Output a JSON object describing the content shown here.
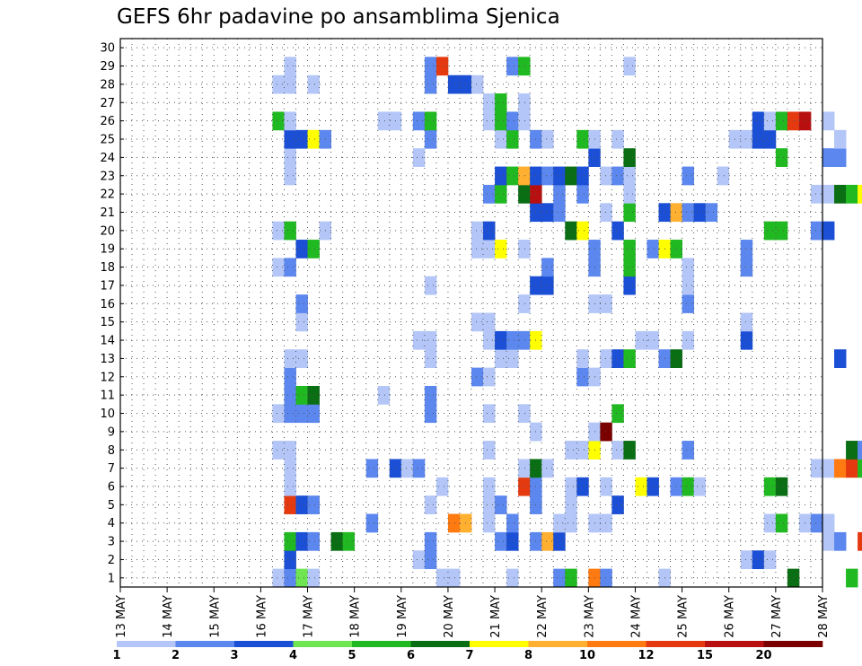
{
  "chart_data": {
    "type": "heatmap",
    "title": "GEFS 6hr padavine po ansamblima Sjenica",
    "y_categories": [
      "1",
      "2",
      "3",
      "4",
      "5",
      "6",
      "7",
      "8",
      "9",
      "10",
      "11",
      "12",
      "13",
      "14",
      "15",
      "16",
      "17",
      "18",
      "19",
      "20",
      "21",
      "22",
      "23",
      "24",
      "25",
      "26",
      "27",
      "28",
      "29",
      "30"
    ],
    "x_ticks": [
      "13 MAY",
      "14 MAY",
      "15 MAY",
      "16 MAY",
      "17 MAY",
      "18 MAY",
      "19 MAY",
      "20 MAY",
      "21 MAY",
      "22 MAY",
      "23 MAY",
      "24 MAY",
      "25 MAY",
      "26 MAY",
      "27 MAY",
      "28 MAY"
    ],
    "x_steps_per_day": 4,
    "grid": "dotted",
    "colorbar": {
      "levels": [
        "1",
        "2",
        "3",
        "4",
        "5",
        "6",
        "7",
        "8",
        "10",
        "12",
        "15",
        "20"
      ],
      "colors": [
        "#b3c6f7",
        "#5b87ef",
        "#1a4fd6",
        "#6fe651",
        "#21b921",
        "#0a6e14",
        "#ffff00",
        "#ffb030",
        "#ff7a10",
        "#e53a10",
        "#b81010",
        "#7a0000"
      ]
    },
    "cells": [
      [
        13,
        1,
        1
      ],
      [
        14,
        1,
        2
      ],
      [
        15,
        1,
        4
      ],
      [
        16,
        1,
        1
      ],
      [
        27,
        1,
        1
      ],
      [
        28,
        1,
        1
      ],
      [
        33,
        1,
        1
      ],
      [
        37,
        1,
        2
      ],
      [
        38,
        1,
        5
      ],
      [
        40,
        1,
        9
      ],
      [
        41,
        1,
        2
      ],
      [
        46,
        1,
        1
      ],
      [
        57,
        1,
        6
      ],
      [
        62,
        1,
        5
      ],
      [
        67,
        1,
        1
      ],
      [
        68,
        1,
        2
      ],
      [
        14,
        2,
        3
      ],
      [
        25,
        2,
        1
      ],
      [
        26,
        2,
        2
      ],
      [
        53,
        2,
        1
      ],
      [
        54,
        2,
        3
      ],
      [
        55,
        2,
        1
      ],
      [
        14,
        3,
        5
      ],
      [
        15,
        3,
        3
      ],
      [
        16,
        3,
        2
      ],
      [
        18,
        3,
        6
      ],
      [
        19,
        3,
        5
      ],
      [
        26,
        3,
        2
      ],
      [
        32,
        3,
        2
      ],
      [
        33,
        3,
        3
      ],
      [
        35,
        3,
        2
      ],
      [
        36,
        3,
        8
      ],
      [
        37,
        3,
        3
      ],
      [
        60,
        3,
        1
      ],
      [
        61,
        3,
        2
      ],
      [
        63,
        3,
        10
      ],
      [
        64,
        3,
        6
      ],
      [
        65,
        3,
        1
      ],
      [
        66,
        3,
        5
      ],
      [
        67,
        3,
        6
      ],
      [
        21,
        4,
        2
      ],
      [
        28,
        4,
        9
      ],
      [
        29,
        4,
        8
      ],
      [
        31,
        4,
        1
      ],
      [
        33,
        4,
        2
      ],
      [
        37,
        4,
        1
      ],
      [
        38,
        4,
        1
      ],
      [
        40,
        4,
        1
      ],
      [
        41,
        4,
        1
      ],
      [
        55,
        4,
        1
      ],
      [
        56,
        4,
        5
      ],
      [
        58,
        4,
        1
      ],
      [
        59,
        4,
        2
      ],
      [
        60,
        4,
        1
      ],
      [
        65,
        4,
        3
      ],
      [
        70,
        4,
        2
      ],
      [
        71,
        4,
        2
      ],
      [
        14,
        5,
        10
      ],
      [
        15,
        5,
        3
      ],
      [
        16,
        5,
        2
      ],
      [
        26,
        5,
        1
      ],
      [
        31,
        5,
        1
      ],
      [
        32,
        5,
        2
      ],
      [
        35,
        5,
        2
      ],
      [
        38,
        5,
        1
      ],
      [
        42,
        5,
        3
      ],
      [
        14,
        6,
        1
      ],
      [
        27,
        6,
        1
      ],
      [
        31,
        6,
        1
      ],
      [
        34,
        6,
        10
      ],
      [
        35,
        6,
        2
      ],
      [
        38,
        6,
        1
      ],
      [
        39,
        6,
        3
      ],
      [
        41,
        6,
        1
      ],
      [
        44,
        6,
        7
      ],
      [
        45,
        6,
        3
      ],
      [
        47,
        6,
        2
      ],
      [
        48,
        6,
        5
      ],
      [
        49,
        6,
        1
      ],
      [
        55,
        6,
        5
      ],
      [
        56,
        6,
        6
      ],
      [
        14,
        7,
        1
      ],
      [
        21,
        7,
        2
      ],
      [
        23,
        7,
        3
      ],
      [
        24,
        7,
        1
      ],
      [
        25,
        7,
        2
      ],
      [
        34,
        7,
        1
      ],
      [
        35,
        7,
        6
      ],
      [
        36,
        7,
        1
      ],
      [
        59,
        7,
        1
      ],
      [
        60,
        7,
        1
      ],
      [
        61,
        7,
        9
      ],
      [
        62,
        7,
        10
      ],
      [
        63,
        7,
        5
      ],
      [
        13,
        8,
        1
      ],
      [
        14,
        8,
        1
      ],
      [
        31,
        8,
        1
      ],
      [
        38,
        8,
        1
      ],
      [
        39,
        8,
        1
      ],
      [
        40,
        8,
        7
      ],
      [
        42,
        8,
        1
      ],
      [
        43,
        8,
        6
      ],
      [
        48,
        8,
        2
      ],
      [
        62,
        8,
        6
      ],
      [
        63,
        8,
        2
      ],
      [
        35,
        9,
        1
      ],
      [
        40,
        9,
        1
      ],
      [
        41,
        9,
        12
      ],
      [
        13,
        10,
        1
      ],
      [
        14,
        10,
        2
      ],
      [
        15,
        10,
        2
      ],
      [
        16,
        10,
        2
      ],
      [
        26,
        10,
        2
      ],
      [
        31,
        10,
        1
      ],
      [
        34,
        10,
        1
      ],
      [
        42,
        10,
        5
      ],
      [
        70,
        10,
        1
      ],
      [
        71,
        10,
        3
      ],
      [
        14,
        11,
        2
      ],
      [
        15,
        11,
        5
      ],
      [
        16,
        11,
        6
      ],
      [
        22,
        11,
        1
      ],
      [
        26,
        11,
        2
      ],
      [
        66,
        11,
        2
      ],
      [
        70,
        11,
        2
      ],
      [
        14,
        12,
        2
      ],
      [
        30,
        12,
        2
      ],
      [
        31,
        12,
        1
      ],
      [
        39,
        12,
        2
      ],
      [
        40,
        12,
        1
      ],
      [
        72,
        12,
        7
      ],
      [
        14,
        13,
        1
      ],
      [
        15,
        13,
        1
      ],
      [
        26,
        13,
        1
      ],
      [
        32,
        13,
        1
      ],
      [
        33,
        13,
        1
      ],
      [
        39,
        13,
        1
      ],
      [
        41,
        13,
        1
      ],
      [
        42,
        13,
        3
      ],
      [
        43,
        13,
        5
      ],
      [
        46,
        13,
        2
      ],
      [
        47,
        13,
        6
      ],
      [
        61,
        13,
        3
      ],
      [
        70,
        13,
        3
      ],
      [
        71,
        13,
        6
      ],
      [
        25,
        14,
        1
      ],
      [
        26,
        14,
        1
      ],
      [
        31,
        14,
        1
      ],
      [
        32,
        14,
        3
      ],
      [
        33,
        14,
        2
      ],
      [
        34,
        14,
        2
      ],
      [
        35,
        14,
        7
      ],
      [
        44,
        14,
        1
      ],
      [
        45,
        14,
        1
      ],
      [
        48,
        14,
        1
      ],
      [
        53,
        14,
        3
      ],
      [
        65,
        14,
        1
      ],
      [
        66,
        14,
        1
      ],
      [
        67,
        14,
        5
      ],
      [
        68,
        14,
        8
      ],
      [
        69,
        14,
        11
      ],
      [
        70,
        14,
        2
      ],
      [
        15,
        15,
        1
      ],
      [
        30,
        15,
        1
      ],
      [
        31,
        15,
        1
      ],
      [
        53,
        15,
        1
      ],
      [
        15,
        16,
        2
      ],
      [
        34,
        16,
        1
      ],
      [
        40,
        16,
        1
      ],
      [
        41,
        16,
        1
      ],
      [
        48,
        16,
        2
      ],
      [
        26,
        17,
        1
      ],
      [
        35,
        17,
        3
      ],
      [
        36,
        17,
        3
      ],
      [
        43,
        17,
        3
      ],
      [
        48,
        17,
        1
      ],
      [
        67,
        17,
        1
      ],
      [
        68,
        17,
        1
      ],
      [
        70,
        17,
        2
      ],
      [
        71,
        17,
        2
      ],
      [
        13,
        18,
        1
      ],
      [
        14,
        18,
        2
      ],
      [
        36,
        18,
        2
      ],
      [
        40,
        18,
        2
      ],
      [
        43,
        18,
        5
      ],
      [
        48,
        18,
        1
      ],
      [
        53,
        18,
        2
      ],
      [
        68,
        18,
        8
      ],
      [
        71,
        18,
        1
      ],
      [
        15,
        19,
        3
      ],
      [
        16,
        19,
        5
      ],
      [
        30,
        19,
        1
      ],
      [
        31,
        19,
        1
      ],
      [
        32,
        19,
        7
      ],
      [
        34,
        19,
        1
      ],
      [
        40,
        19,
        2
      ],
      [
        43,
        19,
        5
      ],
      [
        45,
        19,
        2
      ],
      [
        46,
        19,
        7
      ],
      [
        47,
        19,
        5
      ],
      [
        53,
        19,
        2
      ],
      [
        13,
        20,
        1
      ],
      [
        14,
        20,
        5
      ],
      [
        17,
        20,
        1
      ],
      [
        30,
        20,
        1
      ],
      [
        31,
        20,
        3
      ],
      [
        38,
        20,
        6
      ],
      [
        39,
        20,
        7
      ],
      [
        42,
        20,
        3
      ],
      [
        55,
        20,
        5
      ],
      [
        56,
        20,
        5
      ],
      [
        59,
        20,
        2
      ],
      [
        60,
        20,
        3
      ],
      [
        66,
        20,
        1
      ],
      [
        35,
        21,
        3
      ],
      [
        36,
        21,
        3
      ],
      [
        37,
        21,
        2
      ],
      [
        41,
        21,
        1
      ],
      [
        43,
        21,
        5
      ],
      [
        46,
        21,
        3
      ],
      [
        47,
        21,
        8
      ],
      [
        48,
        21,
        2
      ],
      [
        49,
        21,
        3
      ],
      [
        50,
        21,
        2
      ],
      [
        31,
        22,
        2
      ],
      [
        32,
        22,
        5
      ],
      [
        34,
        22,
        6
      ],
      [
        35,
        22,
        11
      ],
      [
        37,
        22,
        2
      ],
      [
        39,
        22,
        2
      ],
      [
        43,
        22,
        1
      ],
      [
        59,
        22,
        1
      ],
      [
        60,
        22,
        1
      ],
      [
        61,
        22,
        6
      ],
      [
        62,
        22,
        5
      ],
      [
        63,
        22,
        7
      ],
      [
        64,
        22,
        1
      ],
      [
        14,
        23,
        1
      ],
      [
        32,
        23,
        3
      ],
      [
        33,
        23,
        5
      ],
      [
        34,
        23,
        8
      ],
      [
        35,
        23,
        3
      ],
      [
        36,
        23,
        2
      ],
      [
        37,
        23,
        3
      ],
      [
        38,
        23,
        6
      ],
      [
        39,
        23,
        3
      ],
      [
        41,
        23,
        1
      ],
      [
        42,
        23,
        2
      ],
      [
        43,
        23,
        1
      ],
      [
        48,
        23,
        2
      ],
      [
        51,
        23,
        1
      ],
      [
        14,
        24,
        1
      ],
      [
        25,
        24,
        1
      ],
      [
        40,
        24,
        3
      ],
      [
        43,
        24,
        6
      ],
      [
        56,
        24,
        5
      ],
      [
        60,
        24,
        2
      ],
      [
        61,
        24,
        2
      ],
      [
        14,
        25,
        3
      ],
      [
        15,
        25,
        3
      ],
      [
        16,
        25,
        7
      ],
      [
        17,
        25,
        2
      ],
      [
        26,
        25,
        2
      ],
      [
        32,
        25,
        1
      ],
      [
        33,
        25,
        5
      ],
      [
        35,
        25,
        2
      ],
      [
        36,
        25,
        1
      ],
      [
        39,
        25,
        5
      ],
      [
        40,
        25,
        1
      ],
      [
        42,
        25,
        1
      ],
      [
        52,
        25,
        1
      ],
      [
        53,
        25,
        1
      ],
      [
        54,
        25,
        3
      ],
      [
        55,
        25,
        3
      ],
      [
        61,
        25,
        1
      ],
      [
        66,
        25,
        2
      ],
      [
        71,
        25,
        6
      ],
      [
        72,
        25,
        3
      ],
      [
        13,
        26,
        5
      ],
      [
        14,
        26,
        1
      ],
      [
        22,
        26,
        1
      ],
      [
        23,
        26,
        1
      ],
      [
        25,
        26,
        2
      ],
      [
        26,
        26,
        5
      ],
      [
        31,
        26,
        1
      ],
      [
        32,
        26,
        5
      ],
      [
        33,
        26,
        2
      ],
      [
        34,
        26,
        1
      ],
      [
        54,
        26,
        3
      ],
      [
        55,
        26,
        1
      ],
      [
        56,
        26,
        5
      ],
      [
        57,
        26,
        10
      ],
      [
        58,
        26,
        11
      ],
      [
        60,
        26,
        1
      ],
      [
        66,
        26,
        3
      ],
      [
        31,
        27,
        1
      ],
      [
        32,
        27,
        5
      ],
      [
        34,
        27,
        1
      ],
      [
        67,
        27,
        9
      ],
      [
        66,
        27,
        3
      ],
      [
        69,
        27,
        6
      ],
      [
        70,
        27,
        3
      ],
      [
        13,
        28,
        1
      ],
      [
        14,
        28,
        1
      ],
      [
        16,
        28,
        1
      ],
      [
        26,
        28,
        2
      ],
      [
        28,
        28,
        3
      ],
      [
        29,
        28,
        3
      ],
      [
        30,
        28,
        1
      ],
      [
        71,
        28,
        2
      ],
      [
        14,
        29,
        1
      ],
      [
        26,
        29,
        2
      ],
      [
        27,
        29,
        10
      ],
      [
        33,
        29,
        2
      ],
      [
        34,
        29,
        5
      ],
      [
        43,
        29,
        1
      ],
      [
        66,
        29,
        1
      ],
      [
        67,
        29,
        1
      ],
      [
        68,
        29,
        5
      ],
      [
        69,
        29,
        6
      ],
      [
        70,
        29,
        10
      ]
    ]
  }
}
